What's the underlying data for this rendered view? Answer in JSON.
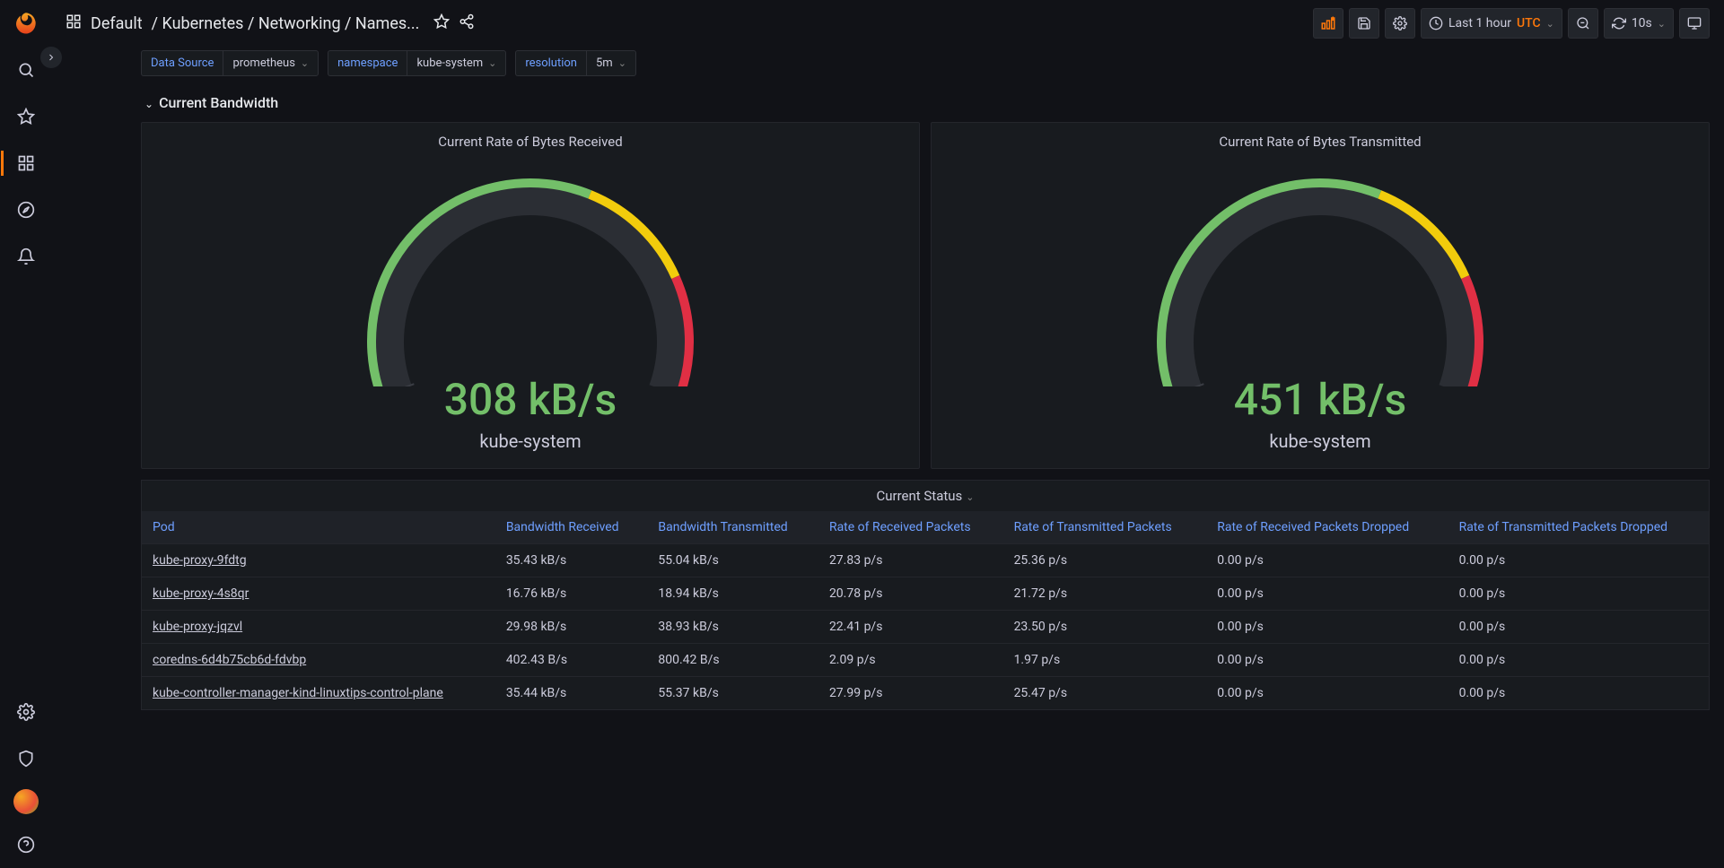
{
  "colors": {
    "bg": "#111217",
    "panel": "#181b1f",
    "accent": "#ff780a",
    "link": "#6e9fff",
    "green": "#73bf69",
    "yellow": "#f2cc0c",
    "red": "#e02f44"
  },
  "breadcrumb": {
    "root": "Default",
    "path": "/ Kubernetes / Networking / Names..."
  },
  "toolbar": {
    "time_label": "Last 1 hour",
    "tz": "UTC",
    "refresh": "10s"
  },
  "vars": [
    {
      "label": "Data Source",
      "value": "prometheus"
    },
    {
      "label": "namespace",
      "value": "kube-system"
    },
    {
      "label": "resolution",
      "value": "5m"
    }
  ],
  "row_title": "Current Bandwidth",
  "gauges": {
    "start_angle": 200,
    "end_angle": -20,
    "radius": 160,
    "thickness": 22,
    "track_color": "#2b2e34",
    "segments": [
      {
        "from": 0.0,
        "to": 0.6,
        "color": "#73bf69"
      },
      {
        "from": 0.6,
        "to": 0.8,
        "color": "#f2cc0c"
      },
      {
        "from": 0.8,
        "to": 1.0,
        "color": "#e02f44"
      }
    ],
    "left": {
      "title": "Current Rate of Bytes Received",
      "value": "308 kB/s",
      "value_color": "#73bf69",
      "subtitle": "kube-system",
      "fill": 0.0
    },
    "right": {
      "title": "Current Rate of Bytes Transmitted",
      "value": "451 kB/s",
      "value_color": "#73bf69",
      "subtitle": "kube-system",
      "fill": 0.0
    }
  },
  "table": {
    "title": "Current Status",
    "columns": [
      "Pod",
      "Bandwidth Received",
      "Bandwidth Transmitted",
      "Rate of Received Packets",
      "Rate of Transmitted Packets",
      "Rate of Received Packets Dropped",
      "Rate of Transmitted Packets Dropped"
    ],
    "rows": [
      [
        "kube-proxy-9fdtg",
        "35.43 kB/s",
        "55.04 kB/s",
        "27.83 p/s",
        "25.36 p/s",
        "0.00 p/s",
        "0.00 p/s"
      ],
      [
        "kube-proxy-4s8qr",
        "16.76 kB/s",
        "18.94 kB/s",
        "20.78 p/s",
        "21.72 p/s",
        "0.00 p/s",
        "0.00 p/s"
      ],
      [
        "kube-proxy-jqzvl",
        "29.98 kB/s",
        "38.93 kB/s",
        "22.41 p/s",
        "23.50 p/s",
        "0.00 p/s",
        "0.00 p/s"
      ],
      [
        "coredns-6d4b75cb6d-fdvbp",
        "402.43 B/s",
        "800.42 B/s",
        "2.09 p/s",
        "1.97 p/s",
        "0.00 p/s",
        "0.00 p/s"
      ],
      [
        "kube-controller-manager-kind-linuxtips-control-plane",
        "35.44 kB/s",
        "55.37 kB/s",
        "27.99 p/s",
        "25.47 p/s",
        "0.00 p/s",
        "0.00 p/s"
      ]
    ]
  }
}
